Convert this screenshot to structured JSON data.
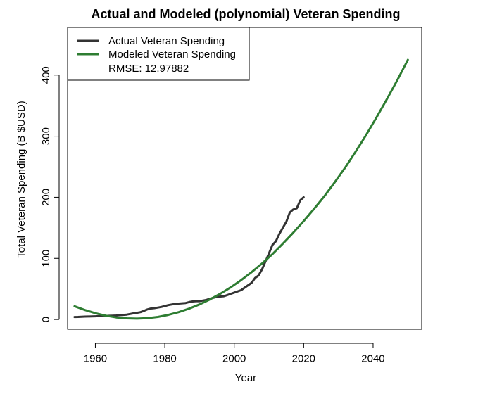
{
  "chart_data": {
    "type": "line",
    "title": "Actual and Modeled (polynomial) Veteran Spending",
    "xlabel": "Year",
    "ylabel": "Total Veteran Spending (B $USD)",
    "xlim": [
      1952,
      2054
    ],
    "ylim": [
      -16,
      478
    ],
    "x_ticks": [
      1960,
      1980,
      2000,
      2020,
      2040
    ],
    "y_ticks": [
      0,
      100,
      200,
      300,
      400
    ],
    "grid": false,
    "legend": {
      "position": "top-left",
      "entries": [
        "Actual Veteran Spending",
        "Modeled Veteran Spending"
      ],
      "note": "RMSE: 12.97882"
    },
    "series": [
      {
        "name": "Actual Veteran Spending",
        "color": "#333333",
        "x": [
          1954,
          1955,
          1956,
          1957,
          1958,
          1959,
          1960,
          1961,
          1962,
          1963,
          1964,
          1965,
          1966,
          1967,
          1968,
          1969,
          1970,
          1971,
          1972,
          1973,
          1974,
          1975,
          1976,
          1977,
          1978,
          1979,
          1980,
          1981,
          1982,
          1983,
          1984,
          1985,
          1986,
          1987,
          1988,
          1989,
          1990,
          1991,
          1992,
          1993,
          1994,
          1995,
          1996,
          1997,
          1998,
          1999,
          2000,
          2001,
          2002,
          2003,
          2004,
          2005,
          2006,
          2007,
          2008,
          2009,
          2010,
          2011,
          2012,
          2013,
          2014,
          2015,
          2016,
          2017,
          2018,
          2019,
          2020
        ],
        "values": [
          4,
          4.2,
          4.5,
          4.7,
          4.8,
          5,
          5.2,
          5.5,
          5.6,
          5.8,
          6,
          6.2,
          6.5,
          7,
          7.5,
          8,
          9,
          10,
          11,
          12,
          14,
          16.5,
          18,
          18.5,
          19.5,
          20.5,
          22,
          23.5,
          24.5,
          25.5,
          26,
          26.5,
          27,
          28.5,
          29.5,
          30,
          30,
          31,
          32,
          34,
          35.5,
          37,
          37.5,
          38,
          40,
          42,
          44,
          46,
          48,
          52,
          56,
          60,
          68,
          72,
          82,
          95,
          108,
          122,
          128,
          140,
          150,
          160,
          175,
          180,
          182,
          195,
          200
        ]
      },
      {
        "name": "Modeled Veteran Spending",
        "color": "#2e7d32",
        "x": [
          1954,
          1957,
          1960,
          1963,
          1966,
          1969,
          1972,
          1975,
          1978,
          1981,
          1984,
          1987,
          1990,
          1993,
          1996,
          1999,
          2002,
          2005,
          2008,
          2011,
          2014,
          2017,
          2020,
          2023,
          2026,
          2029,
          2032,
          2035,
          2038,
          2041,
          2044,
          2047,
          2050
        ],
        "values": [
          21.6,
          15.4,
          10.2,
          6.2,
          3.4,
          1.8,
          1.4,
          2.2,
          4.2,
          7.5,
          12,
          17.7,
          24.6,
          32.8,
          42.1,
          52.7,
          64.5,
          77.5,
          91.7,
          107,
          124,
          142,
          161,
          181,
          202,
          225,
          249,
          275,
          302,
          331,
          361,
          392,
          425
        ]
      }
    ]
  }
}
